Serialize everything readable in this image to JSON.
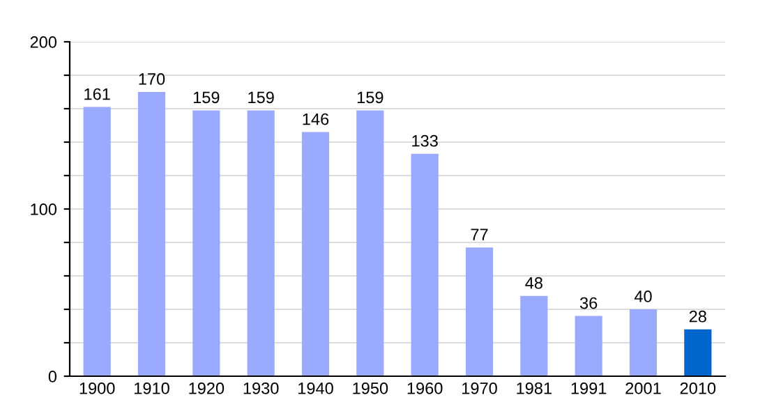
{
  "chart_data": {
    "type": "bar",
    "categories": [
      "1900",
      "1910",
      "1920",
      "1930",
      "1940",
      "1950",
      "1960",
      "1970",
      "1981",
      "1991",
      "2001",
      "2010"
    ],
    "values": [
      161,
      170,
      159,
      159,
      146,
      159,
      133,
      77,
      48,
      36,
      40,
      28
    ],
    "colors": [
      "#99aaff",
      "#99aaff",
      "#99aaff",
      "#99aaff",
      "#99aaff",
      "#99aaff",
      "#99aaff",
      "#99aaff",
      "#99aaff",
      "#99aaff",
      "#99aaff",
      "#0066cc"
    ],
    "ylim": [
      0,
      200
    ],
    "yticks": [
      0,
      {
        "value": 20,
        "label": null
      },
      {
        "value": 40,
        "label": null
      },
      {
        "value": 60,
        "label": null
      },
      {
        "value": 80,
        "label": null
      },
      100,
      {
        "value": 120,
        "label": null
      },
      {
        "value": 140,
        "label": null
      },
      {
        "value": 160,
        "label": null
      },
      {
        "value": 180,
        "label": null
      },
      200
    ],
    "grid": "y",
    "data_labels": true
  }
}
